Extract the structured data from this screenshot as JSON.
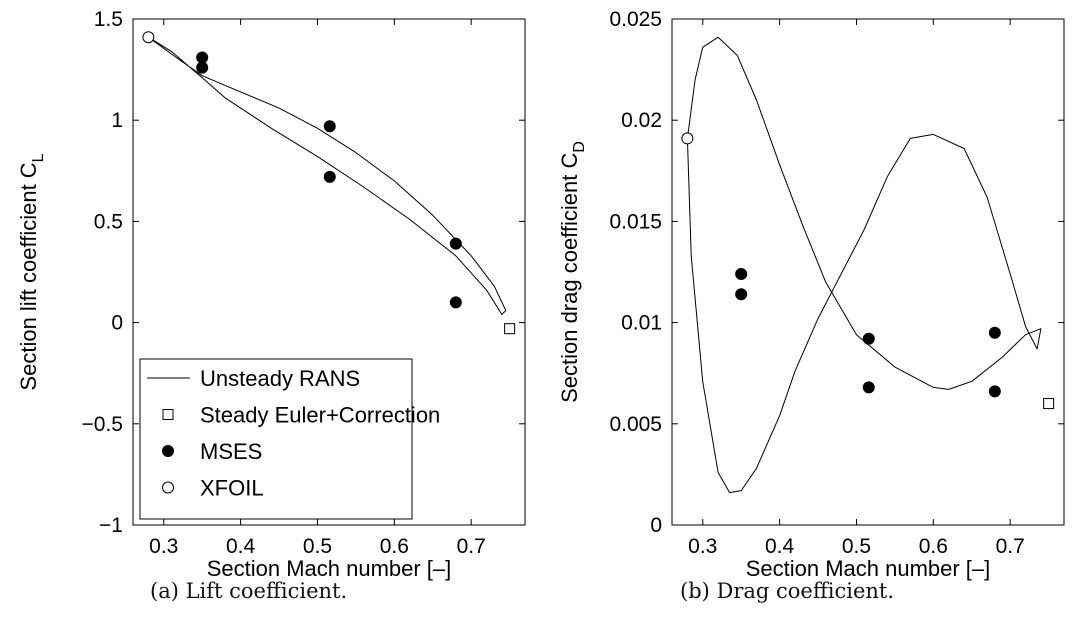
{
  "chart_data": [
    {
      "type": "line+scatter",
      "panel": "(a)",
      "caption": "(a) Lift coefficient.",
      "xlabel": "Section Mach number [–]",
      "ylabel_main": "Section lift coefficient C",
      "ylabel_sub": "L",
      "xlim": [
        0.26,
        0.77
      ],
      "ylim": [
        -1,
        1.5
      ],
      "xticks": [
        {
          "v": 0.3,
          "label": "0.3"
        },
        {
          "v": 0.4,
          "label": "0.4"
        },
        {
          "v": 0.5,
          "label": "0.5"
        },
        {
          "v": 0.6,
          "label": "0.6"
        },
        {
          "v": 0.7,
          "label": "0.7"
        }
      ],
      "yticks": [
        {
          "v": -1,
          "label": "−1"
        },
        {
          "v": -0.5,
          "label": "−0.5"
        },
        {
          "v": 0,
          "label": "0"
        },
        {
          "v": 0.5,
          "label": "0.5"
        },
        {
          "v": 1,
          "label": "1"
        },
        {
          "v": 1.5,
          "label": "1.5"
        }
      ],
      "grid": false,
      "legend_position": "bottom-left",
      "series": [
        {
          "name": "Unsteady RANS",
          "kind": "line",
          "closed": true,
          "x": [
            0.28,
            0.32,
            0.35,
            0.4,
            0.45,
            0.5,
            0.55,
            0.6,
            0.65,
            0.7,
            0.73,
            0.745,
            0.74,
            0.72,
            0.68,
            0.62,
            0.56,
            0.5,
            0.44,
            0.38,
            0.35,
            0.31,
            0.28
          ],
          "y": [
            1.41,
            1.3,
            1.22,
            1.14,
            1.06,
            0.96,
            0.84,
            0.7,
            0.53,
            0.33,
            0.18,
            0.06,
            0.04,
            0.16,
            0.33,
            0.51,
            0.67,
            0.82,
            0.96,
            1.11,
            1.21,
            1.34,
            1.41
          ]
        },
        {
          "name": "Steady Euler+Correction",
          "kind": "marker",
          "marker": "square",
          "x": [
            0.75
          ],
          "y": [
            -0.03
          ]
        },
        {
          "name": "MSES",
          "kind": "marker",
          "marker": "filled-circle",
          "x": [
            0.35,
            0.35,
            0.516,
            0.516,
            0.68,
            0.68
          ],
          "y": [
            1.31,
            1.26,
            0.97,
            0.72,
            0.39,
            0.1
          ]
        },
        {
          "name": "XFOIL",
          "kind": "marker",
          "marker": "open-circle",
          "x": [
            0.28
          ],
          "y": [
            1.41
          ]
        }
      ]
    },
    {
      "type": "line+scatter",
      "panel": "(b)",
      "caption": "(b) Drag coefficient.",
      "xlabel": "Section Mach number [–]",
      "ylabel_main": "Section drag coefficient C",
      "ylabel_sub": "D",
      "xlim": [
        0.26,
        0.77
      ],
      "ylim": [
        0,
        0.025
      ],
      "xticks": [
        {
          "v": 0.3,
          "label": "0.3"
        },
        {
          "v": 0.4,
          "label": "0.4"
        },
        {
          "v": 0.5,
          "label": "0.5"
        },
        {
          "v": 0.6,
          "label": "0.6"
        },
        {
          "v": 0.7,
          "label": "0.7"
        }
      ],
      "yticks": [
        {
          "v": 0,
          "label": "0"
        },
        {
          "v": 0.005,
          "label": "0.005"
        },
        {
          "v": 0.01,
          "label": "0.01"
        },
        {
          "v": 0.015,
          "label": "0.015"
        },
        {
          "v": 0.02,
          "label": "0.02"
        },
        {
          "v": 0.025,
          "label": "0.025"
        }
      ],
      "grid": false,
      "legend_position": "none",
      "series": [
        {
          "name": "Unsteady RANS",
          "kind": "line",
          "closed": true,
          "x": [
            0.28,
            0.29,
            0.3,
            0.32,
            0.345,
            0.37,
            0.4,
            0.43,
            0.46,
            0.5,
            0.55,
            0.6,
            0.62,
            0.65,
            0.69,
            0.72,
            0.74,
            0.735,
            0.72,
            0.7,
            0.67,
            0.64,
            0.6,
            0.57,
            0.54,
            0.51,
            0.48,
            0.45,
            0.42,
            0.4,
            0.37,
            0.35,
            0.335,
            0.32,
            0.3,
            0.285,
            0.28
          ],
          "y": [
            0.0191,
            0.022,
            0.0236,
            0.0241,
            0.0232,
            0.021,
            0.0178,
            0.0148,
            0.012,
            0.0094,
            0.0078,
            0.0068,
            0.0067,
            0.0071,
            0.0083,
            0.0094,
            0.0097,
            0.0087,
            0.0098,
            0.0124,
            0.0162,
            0.0186,
            0.0193,
            0.0191,
            0.0172,
            0.0146,
            0.0124,
            0.0102,
            0.0076,
            0.0054,
            0.0028,
            0.0017,
            0.0016,
            0.0026,
            0.0071,
            0.0133,
            0.0191
          ]
        },
        {
          "name": "Steady Euler+Correction",
          "kind": "marker",
          "marker": "square",
          "x": [
            0.75
          ],
          "y": [
            0.006
          ]
        },
        {
          "name": "MSES",
          "kind": "marker",
          "marker": "filled-circle",
          "x": [
            0.35,
            0.35,
            0.516,
            0.516,
            0.68,
            0.68
          ],
          "y": [
            0.0124,
            0.0114,
            0.0092,
            0.0068,
            0.0095,
            0.0066
          ]
        },
        {
          "name": "XFOIL",
          "kind": "marker",
          "marker": "open-circle",
          "x": [
            0.28
          ],
          "y": [
            0.0191
          ]
        }
      ]
    }
  ]
}
